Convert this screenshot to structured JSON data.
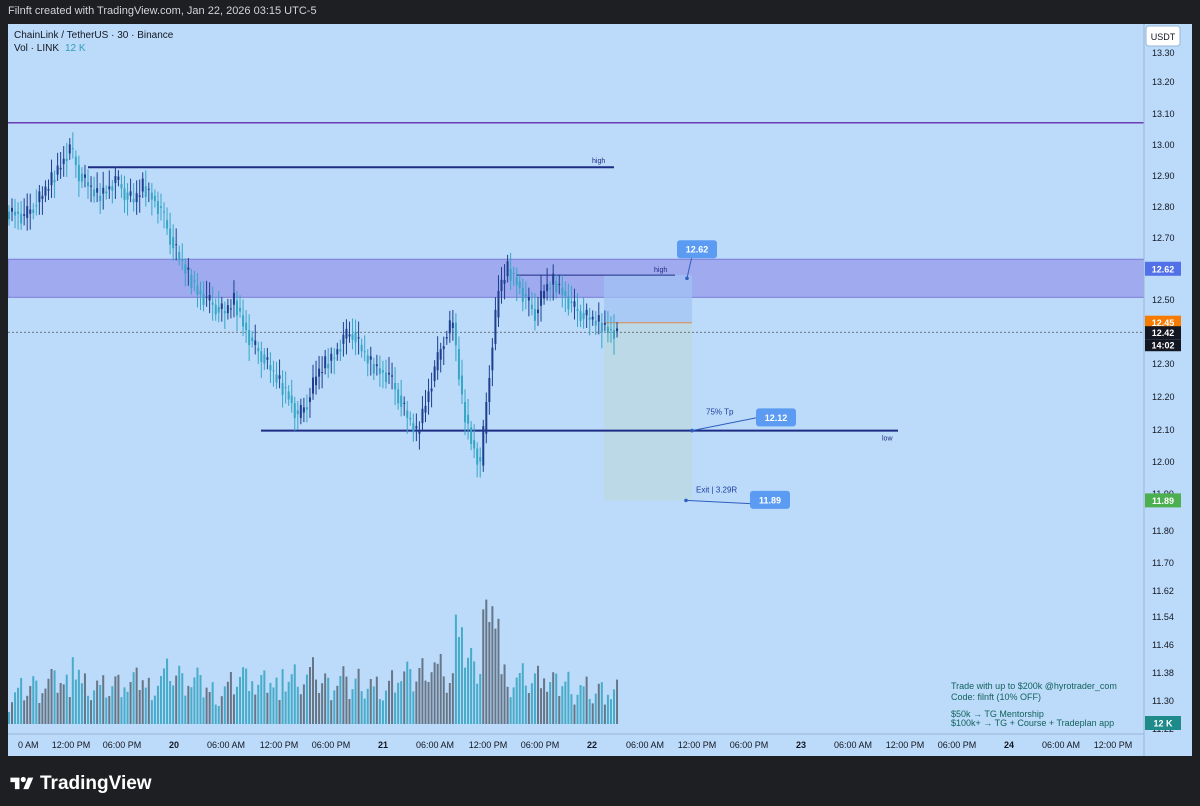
{
  "window": {
    "credit": "Filnft created with TradingView.com, Jan 22, 2026 03:15 UTC-5"
  },
  "header": {
    "symbol_line": "ChainLink / TetherUS · 30 · Binance",
    "vol_label": "Vol · LINK",
    "vol_value": "12 K"
  },
  "currency_button": "USDT",
  "price_axis": {
    "ticks": [
      "13.30",
      "13.20",
      "13.10",
      "13.00",
      "12.90",
      "12.80",
      "12.70",
      "12.60",
      "12.50",
      "12.40",
      "12.30",
      "12.20",
      "12.10",
      "12.00",
      "11.90",
      "11.80",
      "11.70",
      "11.62",
      "11.54",
      "11.46",
      "11.38",
      "11.30",
      "11.22"
    ],
    "badges": {
      "zone_top": "12.62",
      "entry": "12.45",
      "last": "12.42",
      "countdown": "14:02",
      "stop": "11.89",
      "volume": "12 K"
    }
  },
  "time_axis": {
    "labels": [
      "0 AM",
      "12:00 PM",
      "06:00 PM",
      "20",
      "06:00 AM",
      "12:00 PM",
      "06:00 PM",
      "21",
      "06:00 AM",
      "12:00 PM",
      "06:00 PM",
      "22",
      "06:00 AM",
      "12:00 PM",
      "06:00 PM",
      "23",
      "06:00 AM",
      "12:00 PM",
      "06:00 PM",
      "24",
      "06:00 AM",
      "12:00 PM"
    ]
  },
  "annotations": {
    "high_top": "high",
    "high_zone": "high",
    "low": "low",
    "callout_top": "12.62",
    "tp_label": "75% Tp",
    "tp_value": "12.12",
    "exit_label": "Exit | 3.29R",
    "exit_value": "11.89"
  },
  "promo": {
    "line1": "Trade with up to $200k @hyrotrader_com",
    "line2": "Code: filnft (10% OFF)",
    "line3": "$50k → TG Mentorship",
    "line4": "$100k+ → TG +  Course + Tradeplan app"
  },
  "brand": {
    "name": "TradingView"
  },
  "colors": {
    "background": "#bcdaf9",
    "up_candle": "#1e3f8f",
    "down_candle": "#36a6c7",
    "zone": "#8c8ae8",
    "level_line": "#1d2c85",
    "purple_line": "#6a3fb3",
    "target_box": "#bad8e3",
    "stop_badge": "#4caf50",
    "entry_badge": "#f57c00",
    "callout": "#5b9cf2"
  },
  "chart_data": {
    "type": "candlestick",
    "symbol": "ChainLink / TetherUS",
    "timeframe": "30",
    "exchange": "Binance",
    "y_range": [
      11.22,
      13.3
    ],
    "levels": [
      {
        "label": "",
        "price": 13.08
      },
      {
        "label": "high",
        "price": 12.94
      },
      {
        "label": "high",
        "price": 12.6
      },
      {
        "label": "low",
        "price": 12.11
      }
    ],
    "zone": {
      "top": 12.65,
      "bottom": 12.53
    },
    "position": {
      "entry": 12.45,
      "target": 12.12,
      "stop": 11.89
    },
    "close_series": [
      12.8,
      12.78,
      12.82,
      12.85,
      12.9,
      12.95,
      13.0,
      12.92,
      12.88,
      12.85,
      12.87,
      12.9,
      12.86,
      12.83,
      12.88,
      12.85,
      12.8,
      12.72,
      12.65,
      12.6,
      12.55,
      12.52,
      12.5,
      12.48,
      12.52,
      12.45,
      12.38,
      12.35,
      12.3,
      12.26,
      12.22,
      12.15,
      12.2,
      12.28,
      12.32,
      12.35,
      12.4,
      12.42,
      12.36,
      12.32,
      12.3,
      12.28,
      12.22,
      12.15,
      12.1,
      12.2,
      12.3,
      12.4,
      12.45,
      12.2,
      12.08,
      12.0,
      12.3,
      12.55,
      12.62,
      12.58,
      12.52,
      12.48,
      12.55,
      12.58,
      12.55,
      12.5,
      12.48,
      12.46,
      12.45,
      12.43,
      12.42
    ]
  }
}
